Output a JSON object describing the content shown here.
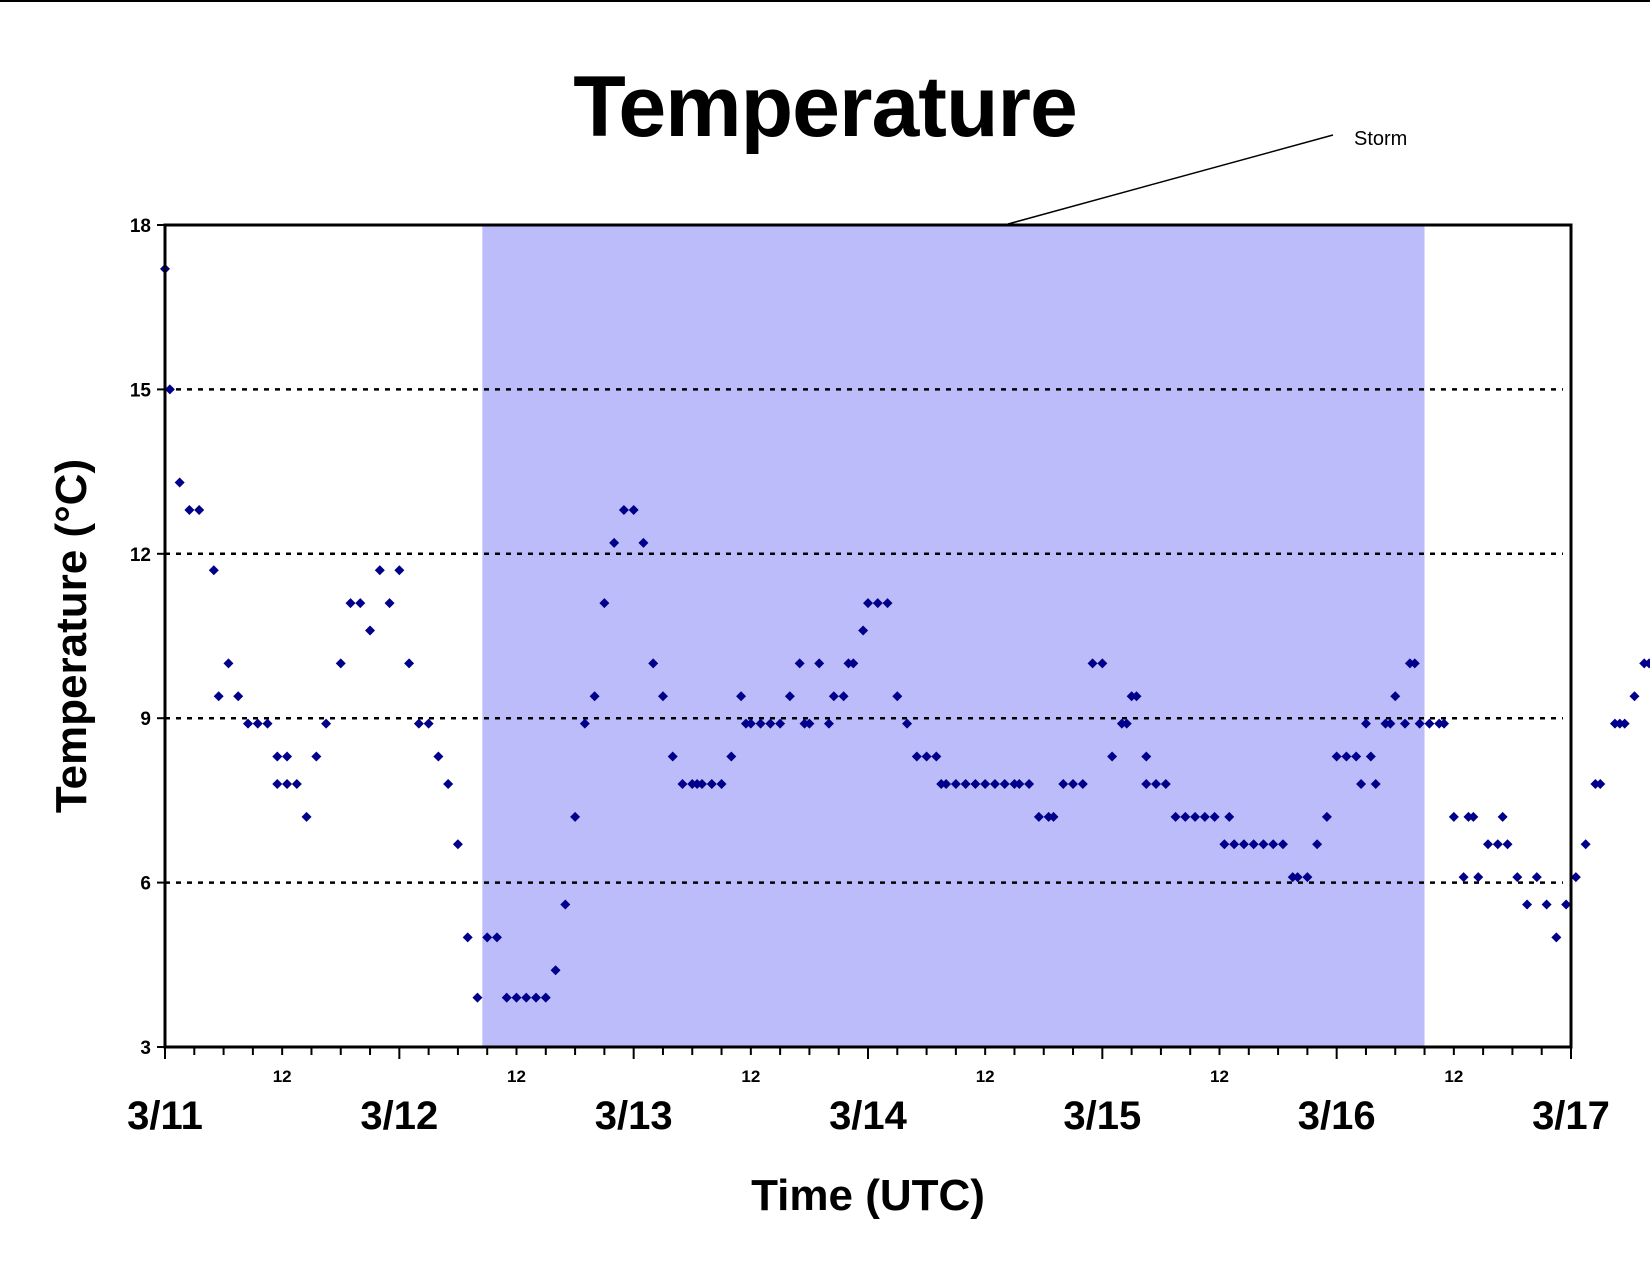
{
  "chart_data": {
    "type": "scatter",
    "title": "Temperature",
    "xlabel": "Time (UTC)",
    "ylabel": "Temperature (°C)",
    "xlim": [
      "3/11 00:00",
      "3/17 00:00"
    ],
    "ylim": [
      3,
      18
    ],
    "yticks": [
      3,
      6,
      9,
      12,
      15,
      18
    ],
    "ygrid": [
      6,
      9,
      12,
      15
    ],
    "xticks_major": [
      {
        "label": "3/11",
        "time": "3/11 00:00"
      },
      {
        "label": "3/12",
        "time": "3/12 00:00"
      },
      {
        "label": "3/13",
        "time": "3/13 00:00"
      },
      {
        "label": "3/14",
        "time": "3/14 00:00"
      },
      {
        "label": "3/15",
        "time": "3/15 00:00"
      },
      {
        "label": "3/16",
        "time": "3/16 00:00"
      },
      {
        "label": "3/17",
        "time": "3/17 00:00"
      }
    ],
    "xticks_minor": [
      {
        "label": "12",
        "time": "3/11 12:00"
      },
      {
        "label": "12",
        "time": "3/12 12:00"
      },
      {
        "label": "12",
        "time": "3/13 12:00"
      },
      {
        "label": "12",
        "time": "3/14 12:00"
      },
      {
        "label": "12",
        "time": "3/15 12:00"
      },
      {
        "label": "12",
        "time": "3/16 12:00"
      }
    ],
    "minor_tick_interval_hours": 3,
    "marker_color": "#00008b",
    "shaded_region": {
      "label": "Storm",
      "start": "3/12 08:30",
      "end": "3/16 09:00",
      "color": "#bcbcfa"
    },
    "series": [
      {
        "points": [
          [
            "3/11 00:00",
            17.2
          ],
          [
            "3/11 00:30",
            15.0
          ],
          [
            "3/11 01:30",
            13.3
          ],
          [
            "3/11 02:30",
            12.8
          ],
          [
            "3/11 03:30",
            12.8
          ],
          [
            "3/11 05:00",
            11.7
          ],
          [
            "3/11 05:30",
            9.4
          ],
          [
            "3/11 06:30",
            10.0
          ],
          [
            "3/11 07:30",
            9.4
          ],
          [
            "3/11 08:30",
            8.9
          ],
          [
            "3/11 09:30",
            8.9
          ],
          [
            "3/11 10:30",
            8.9
          ],
          [
            "3/11 11:30",
            8.3
          ],
          [
            "3/11 11:30",
            7.8
          ],
          [
            "3/11 12:30",
            7.8
          ],
          [
            "3/11 12:30",
            8.3
          ],
          [
            "3/11 13:30",
            7.8
          ],
          [
            "3/11 14:30",
            7.2
          ],
          [
            "3/11 15:30",
            8.3
          ],
          [
            "3/11 16:30",
            8.9
          ],
          [
            "3/11 18:00",
            10.0
          ],
          [
            "3/11 19:00",
            11.1
          ],
          [
            "3/11 20:00",
            11.1
          ],
          [
            "3/11 21:00",
            10.6
          ],
          [
            "3/11 22:00",
            11.7
          ],
          [
            "3/11 23:00",
            11.1
          ],
          [
            "3/12 00:00",
            11.7
          ],
          [
            "3/12 01:00",
            10.0
          ],
          [
            "3/12 02:00",
            8.9
          ],
          [
            "3/12 03:00",
            8.9
          ],
          [
            "3/12 04:00",
            8.3
          ],
          [
            "3/12 05:00",
            7.8
          ],
          [
            "3/12 06:00",
            6.7
          ],
          [
            "3/12 07:00",
            5.0
          ],
          [
            "3/12 08:00",
            3.9
          ],
          [
            "3/12 09:00",
            5.0
          ],
          [
            "3/12 10:00",
            5.0
          ],
          [
            "3/12 11:00",
            3.9
          ],
          [
            "3/12 12:00",
            3.9
          ],
          [
            "3/12 13:00",
            3.9
          ],
          [
            "3/12 14:00",
            3.9
          ],
          [
            "3/12 15:00",
            3.9
          ],
          [
            "3/12 16:00",
            4.4
          ],
          [
            "3/12 17:00",
            5.6
          ],
          [
            "3/12 18:00",
            7.2
          ],
          [
            "3/12 19:00",
            8.9
          ],
          [
            "3/12 20:00",
            9.4
          ],
          [
            "3/12 21:00",
            11.1
          ],
          [
            "3/12 22:00",
            12.2
          ],
          [
            "3/12 23:00",
            12.8
          ],
          [
            "3/13 00:00",
            12.8
          ],
          [
            "3/13 01:00",
            12.2
          ],
          [
            "3/13 02:00",
            10.0
          ],
          [
            "3/13 03:00",
            9.4
          ],
          [
            "3/13 04:00",
            8.3
          ],
          [
            "3/13 05:00",
            7.8
          ],
          [
            "3/13 06:00",
            7.8
          ],
          [
            "3/13 06:30",
            7.8
          ],
          [
            "3/13 07:00",
            7.8
          ],
          [
            "3/13 08:00",
            7.8
          ],
          [
            "3/13 09:00",
            7.8
          ],
          [
            "3/13 10:00",
            8.3
          ],
          [
            "3/13 11:00",
            9.4
          ],
          [
            "3/13 11:30",
            8.9
          ],
          [
            "3/13 12:00",
            8.9
          ],
          [
            "3/13 13:00",
            8.9
          ],
          [
            "3/13 14:00",
            8.9
          ],
          [
            "3/13 15:00",
            8.9
          ],
          [
            "3/13 16:00",
            9.4
          ],
          [
            "3/13 17:00",
            10.0
          ],
          [
            "3/13 17:30",
            8.9
          ],
          [
            "3/13 18:00",
            8.9
          ],
          [
            "3/13 19:00",
            10.0
          ],
          [
            "3/13 20:00",
            8.9
          ],
          [
            "3/13 20:30",
            9.4
          ],
          [
            "3/13 21:30",
            9.4
          ],
          [
            "3/13 22:00",
            10.0
          ],
          [
            "3/13 22:30",
            10.0
          ],
          [
            "3/13 23:30",
            10.6
          ],
          [
            "3/14 00:00",
            11.1
          ],
          [
            "3/14 01:00",
            11.1
          ],
          [
            "3/14 02:00",
            11.1
          ],
          [
            "3/14 03:00",
            9.4
          ],
          [
            "3/14 04:00",
            8.9
          ],
          [
            "3/14 05:00",
            8.3
          ],
          [
            "3/14 06:00",
            8.3
          ],
          [
            "3/14 07:00",
            8.3
          ],
          [
            "3/14 07:30",
            7.8
          ],
          [
            "3/14 08:00",
            7.8
          ],
          [
            "3/14 09:00",
            7.8
          ],
          [
            "3/14 10:00",
            7.8
          ],
          [
            "3/14 11:00",
            7.8
          ],
          [
            "3/14 12:00",
            7.8
          ],
          [
            "3/14 13:00",
            7.8
          ],
          [
            "3/14 14:00",
            7.8
          ],
          [
            "3/14 15:00",
            7.8
          ],
          [
            "3/14 15:30",
            7.8
          ],
          [
            "3/14 16:30",
            7.8
          ],
          [
            "3/14 17:30",
            7.2
          ],
          [
            "3/14 18:30",
            7.2
          ],
          [
            "3/14 19:00",
            7.2
          ],
          [
            "3/14 20:00",
            7.8
          ],
          [
            "3/14 21:00",
            7.8
          ],
          [
            "3/14 22:00",
            7.8
          ],
          [
            "3/14 23:00",
            10.0
          ],
          [
            "3/15 00:00",
            10.0
          ],
          [
            "3/15 01:00",
            8.3
          ],
          [
            "3/15 02:00",
            8.9
          ],
          [
            "3/15 02:30",
            8.9
          ],
          [
            "3/15 03:00",
            9.4
          ],
          [
            "3/15 03:30",
            9.4
          ],
          [
            "3/15 04:30",
            8.3
          ],
          [
            "3/15 04:30",
            7.8
          ],
          [
            "3/15 05:30",
            7.8
          ],
          [
            "3/15 06:30",
            7.8
          ],
          [
            "3/15 07:30",
            7.2
          ],
          [
            "3/15 08:30",
            7.2
          ],
          [
            "3/15 09:30",
            7.2
          ],
          [
            "3/15 10:30",
            7.2
          ],
          [
            "3/15 11:30",
            7.2
          ],
          [
            "3/15 12:30",
            6.7
          ],
          [
            "3/15 13:00",
            7.2
          ],
          [
            "3/15 13:30",
            6.7
          ],
          [
            "3/15 14:30",
            6.7
          ],
          [
            "3/15 15:30",
            6.7
          ],
          [
            "3/15 16:30",
            6.7
          ],
          [
            "3/15 17:30",
            6.7
          ],
          [
            "3/15 18:30",
            6.7
          ],
          [
            "3/15 19:30",
            6.1
          ],
          [
            "3/15 20:00",
            6.1
          ],
          [
            "3/15 21:00",
            6.1
          ],
          [
            "3/15 22:00",
            6.7
          ],
          [
            "3/15 23:00",
            7.2
          ],
          [
            "3/16 00:00",
            8.3
          ],
          [
            "3/16 01:00",
            8.3
          ],
          [
            "3/16 02:00",
            8.3
          ],
          [
            "3/16 02:30",
            7.8
          ],
          [
            "3/16 03:00",
            8.9
          ],
          [
            "3/16 03:30",
            8.3
          ],
          [
            "3/16 04:00",
            7.8
          ],
          [
            "3/16 05:00",
            8.9
          ],
          [
            "3/16 05:30",
            8.9
          ],
          [
            "3/16 06:00",
            9.4
          ],
          [
            "3/16 07:00",
            8.9
          ],
          [
            "3/16 07:30",
            10.0
          ],
          [
            "3/16 08:00",
            10.0
          ],
          [
            "3/16 08:30",
            8.9
          ],
          [
            "3/16 09:30",
            8.9
          ],
          [
            "3/16 10:30",
            8.9
          ],
          [
            "3/16 11:00",
            8.9
          ],
          [
            "3/16 12:00",
            7.2
          ],
          [
            "3/16 13:00",
            6.1
          ],
          [
            "3/16 13:30",
            7.2
          ],
          [
            "3/16 14:00",
            7.2
          ],
          [
            "3/16 14:30",
            6.1
          ],
          [
            "3/16 15:30",
            6.7
          ],
          [
            "3/16 16:30",
            6.7
          ],
          [
            "3/16 17:00",
            7.2
          ],
          [
            "3/16 17:30",
            6.7
          ],
          [
            "3/16 18:30",
            6.1
          ],
          [
            "3/16 19:30",
            5.6
          ],
          [
            "3/16 20:30",
            6.1
          ],
          [
            "3/16 21:30",
            5.6
          ],
          [
            "3/16 22:30",
            5.0
          ],
          [
            "3/16 23:30",
            5.6
          ],
          [
            "3/17 00:30",
            6.1
          ],
          [
            "3/17 01:30",
            6.7
          ],
          [
            "3/17 02:30",
            7.8
          ],
          [
            "3/17 03:00",
            7.8
          ],
          [
            "3/17 04:30",
            8.9
          ],
          [
            "3/17 05:00",
            8.9
          ],
          [
            "3/17 05:30",
            8.9
          ],
          [
            "3/17 06:30",
            9.4
          ],
          [
            "3/17 07:30",
            10.0
          ],
          [
            "3/17 08:00",
            10.0
          ]
        ]
      }
    ]
  }
}
